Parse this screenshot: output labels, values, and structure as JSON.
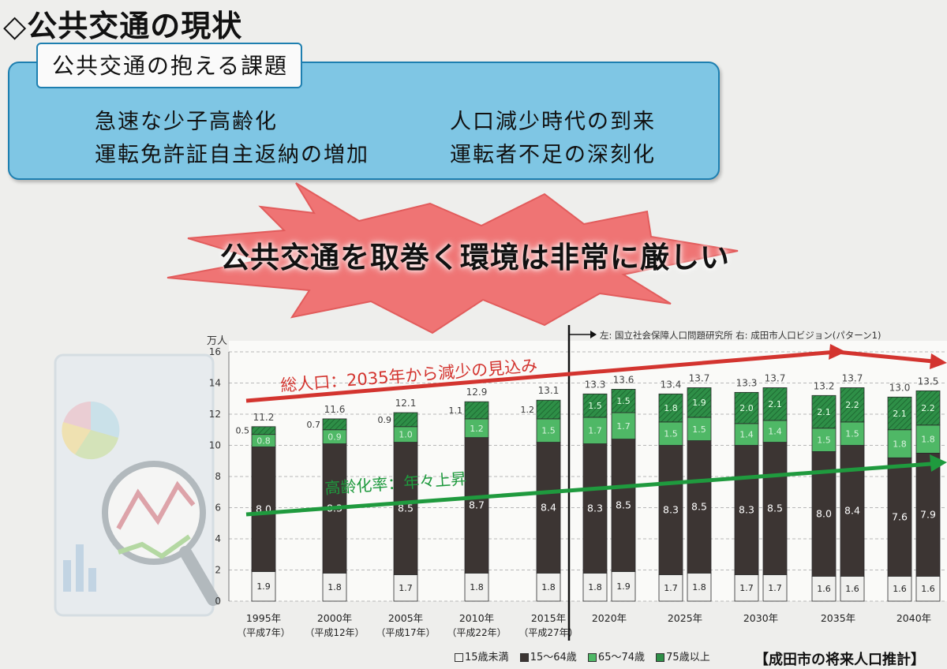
{
  "page_title": "◇公共交通の現状",
  "issues": {
    "label": "公共交通の抱える課題",
    "items": [
      "急速な少子高齢化",
      "人口減少時代の到来",
      "運転免許証自主返納の増加",
      "運転者不足の深刻化"
    ]
  },
  "callout": "公共交通を取巻く環境は非常に厳しい",
  "legend": {
    "items": [
      "15歳未満",
      "15〜64歳",
      "65〜74歳",
      "75歳以上"
    ],
    "colors": [
      "#f0f0ee",
      "#3c3533",
      "#4fb866",
      "#2e8f47"
    ]
  },
  "source_note": "【成田市の将来人口推計】",
  "chart_data": {
    "type": "bar",
    "ylabel": "万人",
    "ylim": [
      0,
      16
    ],
    "yticks": [
      0,
      2,
      4,
      6,
      8,
      10,
      12,
      14,
      16
    ],
    "grid": true,
    "categories": [
      "1995年",
      "2000年",
      "2005年",
      "2010年",
      "2015年",
      "2020年",
      "2025年",
      "2030年",
      "2035年",
      "2040年"
    ],
    "era_labels": [
      "（平成7年）",
      "（平成12年）",
      "（平成17年）",
      "（平成22年）",
      "（平成27年）"
    ],
    "source_note": "左: 国立社会保障人口問題研究所  右: 成田市人口ビジョン(パターン1)",
    "annotations": {
      "total": "総人口：2035年から減少の見込み",
      "aging": "高齢化率：年々上昇"
    },
    "series_order": [
      "15歳未満",
      "15〜64歳",
      "65〜74歳",
      "75歳以上"
    ],
    "bars": [
      {
        "year": "1995年",
        "variant": "actual",
        "values": [
          1.9,
          8.0,
          0.8,
          0.5
        ],
        "labels": [
          "1.9",
          "8.0",
          "0.8",
          "0.5"
        ],
        "total": "11.2"
      },
      {
        "year": "2000年",
        "variant": "actual",
        "values": [
          1.8,
          8.3,
          0.9,
          0.7
        ],
        "labels": [
          "1.8",
          "8.3",
          "0.9",
          "0.7"
        ],
        "total": "11.6"
      },
      {
        "year": "2005年",
        "variant": "actual",
        "values": [
          1.7,
          8.5,
          1.0,
          0.9
        ],
        "labels": [
          "1.7",
          "8.5",
          "1.0",
          "0.9"
        ],
        "total": "12.1"
      },
      {
        "year": "2010年",
        "variant": "actual",
        "values": [
          1.8,
          8.7,
          1.2,
          1.1
        ],
        "labels": [
          "1.8",
          "8.7",
          "1.2",
          "1.1"
        ],
        "total": "12.9"
      },
      {
        "year": "2015年",
        "variant": "actual",
        "values": [
          1.8,
          8.4,
          1.5,
          1.2
        ],
        "labels": [
          "1.8",
          "8.4",
          "1.5",
          "1.2"
        ],
        "total": "13.1"
      },
      {
        "year": "2020年",
        "variant": "left",
        "values": [
          1.8,
          8.3,
          1.7,
          1.5
        ],
        "labels": [
          "1.8",
          "8.3",
          "1.7",
          "1.5"
        ],
        "total": "13.3"
      },
      {
        "year": "2020年",
        "variant": "right",
        "values": [
          1.9,
          8.5,
          1.7,
          1.5
        ],
        "labels": [
          "1.9",
          "8.5",
          "1.7",
          "1.5"
        ],
        "total": "13.6"
      },
      {
        "year": "2025年",
        "variant": "left",
        "values": [
          1.7,
          8.3,
          1.5,
          1.8
        ],
        "labels": [
          "1.7",
          "8.3",
          "1.5",
          "1.8"
        ],
        "total": "13.4"
      },
      {
        "year": "2025年",
        "variant": "right",
        "values": [
          1.8,
          8.5,
          1.5,
          1.9
        ],
        "labels": [
          "1.8",
          "8.5",
          "1.5",
          "1.9"
        ],
        "total": "13.7"
      },
      {
        "year": "2030年",
        "variant": "left",
        "values": [
          1.7,
          8.3,
          1.4,
          2.0
        ],
        "labels": [
          "1.7",
          "8.3",
          "1.4",
          "2.0"
        ],
        "total": "13.3"
      },
      {
        "year": "2030年",
        "variant": "right",
        "values": [
          1.7,
          8.5,
          1.4,
          2.1
        ],
        "labels": [
          "1.7",
          "8.5",
          "1.4",
          "2.1"
        ],
        "total": "13.7"
      },
      {
        "year": "2035年",
        "variant": "left",
        "values": [
          1.6,
          8.0,
          1.5,
          2.1
        ],
        "labels": [
          "1.6",
          "8.0",
          "1.5",
          "2.1"
        ],
        "total": "13.2"
      },
      {
        "year": "2035年",
        "variant": "right",
        "values": [
          1.6,
          8.4,
          1.5,
          2.2
        ],
        "labels": [
          "1.6",
          "8.4",
          "1.5",
          "2.2"
        ],
        "total": "13.7"
      },
      {
        "year": "2040年",
        "variant": "left",
        "values": [
          1.6,
          7.6,
          1.8,
          2.1
        ],
        "labels": [
          "1.6",
          "7.6",
          "1.8",
          "2.1"
        ],
        "total": "13.0"
      },
      {
        "year": "2040年",
        "variant": "right",
        "values": [
          1.6,
          7.9,
          1.8,
          2.2
        ],
        "labels": [
          "1.6",
          "7.9",
          "1.8",
          "2.2"
        ],
        "total": "13.5"
      }
    ]
  }
}
